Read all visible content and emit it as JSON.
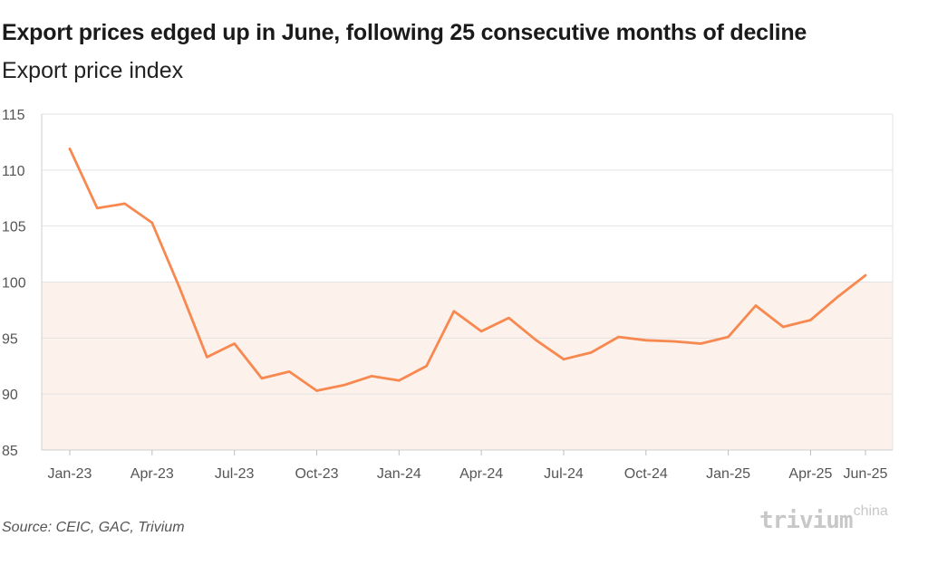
{
  "header": {
    "title": "Export prices edged up in June, following 25 consecutive months of decline",
    "subtitle": "Export price index"
  },
  "footer": {
    "source": "Source: CEIC, GAC, Trivium",
    "logo_main": "trivium",
    "logo_sup": "china"
  },
  "colors": {
    "line": "#f7884f",
    "shade": "#fdf1eb",
    "grid": "#e3e3e3",
    "axis_text": "#555555"
  },
  "chart_data": {
    "type": "line",
    "title": "Export prices edged up in June, following 25 consecutive months of decline",
    "subtitle": "Export price index",
    "xlabel": "",
    "ylabel": "",
    "ylim": [
      85,
      115
    ],
    "yticks": [
      85,
      90,
      95,
      100,
      105,
      110,
      115
    ],
    "grid": true,
    "shaded_band": {
      "from": 85,
      "to": 100
    },
    "x": [
      "Jan-23",
      "Feb-23",
      "Mar-23",
      "Apr-23",
      "May-23",
      "Jun-23",
      "Jul-23",
      "Aug-23",
      "Sep-23",
      "Oct-23",
      "Nov-23",
      "Dec-23",
      "Jan-24",
      "Feb-24",
      "Mar-24",
      "Apr-24",
      "May-24",
      "Jun-24",
      "Jul-24",
      "Aug-24",
      "Sep-24",
      "Oct-24",
      "Nov-24",
      "Dec-24",
      "Jan-25",
      "Feb-25",
      "Mar-25",
      "Apr-25",
      "May-25",
      "Jun-25"
    ],
    "xtick_labels": [
      "Jan-23",
      "Apr-23",
      "Jul-23",
      "Oct-23",
      "Jan-24",
      "Apr-24",
      "Jul-24",
      "Oct-24",
      "Jan-25",
      "Apr-25",
      "Jun-25"
    ],
    "series": [
      {
        "values": [
          111.9,
          106.6,
          107.0,
          105.3,
          99.5,
          93.3,
          94.5,
          91.4,
          92.0,
          90.3,
          90.8,
          91.6,
          91.2,
          92.5,
          97.4,
          95.6,
          96.8,
          94.8,
          93.1,
          93.7,
          95.1,
          94.8,
          94.7,
          94.5,
          95.1,
          97.9,
          96.0,
          96.6,
          98.7,
          100.6
        ]
      }
    ]
  }
}
